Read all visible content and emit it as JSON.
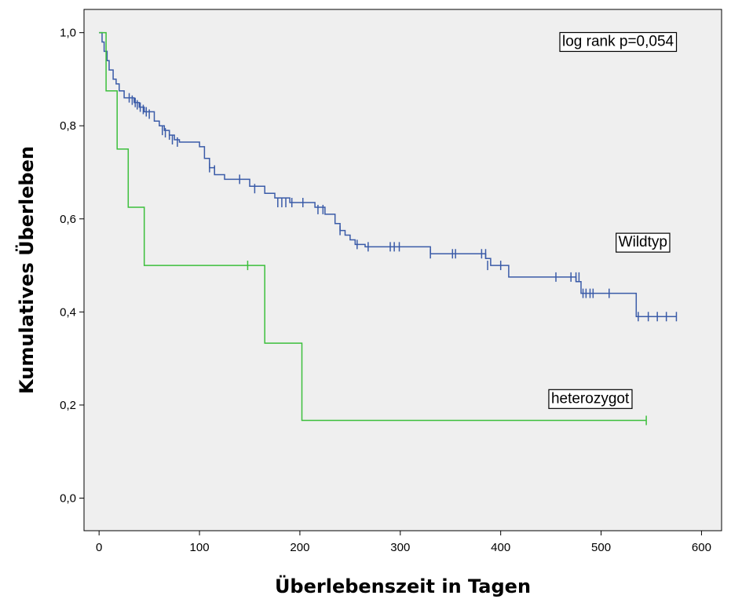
{
  "chart_data": {
    "type": "line",
    "xlabel": "Überlebenszeit in Tagen",
    "ylabel": "Kumulatives Überleben",
    "xlim": [
      -15,
      620
    ],
    "ylim": [
      -0.07,
      1.05
    ],
    "x_ticks": [
      0,
      100,
      200,
      300,
      400,
      500,
      600
    ],
    "x_tick_labels": [
      "0",
      "100",
      "200",
      "300",
      "400",
      "500",
      "600"
    ],
    "y_ticks": [
      0.0,
      0.2,
      0.4,
      0.6,
      0.8,
      1.0
    ],
    "y_tick_labels": [
      "0,0",
      "0,2",
      "0,4",
      "0,6",
      "0,8",
      "1,0"
    ],
    "grid": false,
    "background": "#efefef",
    "series": [
      {
        "name": "Wildtyp",
        "color": "#3a5ba8",
        "steps": [
          [
            0,
            1.0
          ],
          [
            3,
            0.98
          ],
          [
            5,
            0.96
          ],
          [
            8,
            0.94
          ],
          [
            10,
            0.92
          ],
          [
            14,
            0.9
          ],
          [
            17,
            0.89
          ],
          [
            20,
            0.875
          ],
          [
            25,
            0.86
          ],
          [
            35,
            0.85
          ],
          [
            40,
            0.84
          ],
          [
            45,
            0.83
          ],
          [
            55,
            0.81
          ],
          [
            60,
            0.8
          ],
          [
            65,
            0.79
          ],
          [
            70,
            0.78
          ],
          [
            75,
            0.77
          ],
          [
            80,
            0.765
          ],
          [
            100,
            0.755
          ],
          [
            105,
            0.73
          ],
          [
            110,
            0.71
          ],
          [
            115,
            0.695
          ],
          [
            125,
            0.685
          ],
          [
            150,
            0.67
          ],
          [
            165,
            0.655
          ],
          [
            175,
            0.645
          ],
          [
            190,
            0.635
          ],
          [
            215,
            0.625
          ],
          [
            225,
            0.61
          ],
          [
            235,
            0.59
          ],
          [
            240,
            0.575
          ],
          [
            245,
            0.565
          ],
          [
            250,
            0.555
          ],
          [
            255,
            0.545
          ],
          [
            265,
            0.54
          ],
          [
            330,
            0.525
          ],
          [
            385,
            0.515
          ],
          [
            390,
            0.5
          ],
          [
            408,
            0.475
          ],
          [
            475,
            0.465
          ],
          [
            480,
            0.44
          ],
          [
            535,
            0.39
          ],
          [
            575,
            0.39
          ]
        ],
        "censored": [
          [
            30,
            0.86
          ],
          [
            33,
            0.855
          ],
          [
            36,
            0.85
          ],
          [
            38,
            0.845
          ],
          [
            41,
            0.84
          ],
          [
            44,
            0.835
          ],
          [
            47,
            0.83
          ],
          [
            50,
            0.825
          ],
          [
            63,
            0.79
          ],
          [
            66,
            0.785
          ],
          [
            70,
            0.78
          ],
          [
            73,
            0.77
          ],
          [
            78,
            0.765
          ],
          [
            110,
            0.71
          ],
          [
            115,
            0.705
          ],
          [
            140,
            0.685
          ],
          [
            155,
            0.665
          ],
          [
            178,
            0.635
          ],
          [
            182,
            0.635
          ],
          [
            186,
            0.635
          ],
          [
            192,
            0.635
          ],
          [
            203,
            0.635
          ],
          [
            218,
            0.62
          ],
          [
            223,
            0.62
          ],
          [
            240,
            0.575
          ],
          [
            257,
            0.545
          ],
          [
            268,
            0.54
          ],
          [
            290,
            0.54
          ],
          [
            294,
            0.54
          ],
          [
            299,
            0.54
          ],
          [
            330,
            0.525
          ],
          [
            352,
            0.525
          ],
          [
            355,
            0.525
          ],
          [
            381,
            0.525
          ],
          [
            385,
            0.525
          ],
          [
            387,
            0.5
          ],
          [
            400,
            0.5
          ],
          [
            455,
            0.475
          ],
          [
            470,
            0.475
          ],
          [
            475,
            0.475
          ],
          [
            478,
            0.475
          ],
          [
            482,
            0.44
          ],
          [
            485,
            0.44
          ],
          [
            489,
            0.44
          ],
          [
            492,
            0.44
          ],
          [
            508,
            0.44
          ],
          [
            537,
            0.39
          ],
          [
            547,
            0.39
          ],
          [
            556,
            0.39
          ],
          [
            565,
            0.39
          ],
          [
            575,
            0.39
          ]
        ]
      },
      {
        "name": "heterozygot",
        "color": "#3cbf3c",
        "steps": [
          [
            0,
            1.0
          ],
          [
            6,
            1.0
          ],
          [
            7,
            0.875
          ],
          [
            18,
            0.75
          ],
          [
            29,
            0.625
          ],
          [
            45,
            0.5
          ],
          [
            165,
            0.333
          ],
          [
            202,
            0.167
          ],
          [
            545,
            0.167
          ]
        ],
        "censored": [
          [
            148,
            0.5
          ],
          [
            545,
            0.167
          ]
        ]
      }
    ],
    "annotations": [
      {
        "text": "log rank p=0,054",
        "x": 0.925,
        "y": 0.93
      },
      {
        "text": "Wildtyp",
        "x": 0.915,
        "y": 0.545
      },
      {
        "text": "heterozygot",
        "x": 0.855,
        "y": 0.245
      }
    ]
  }
}
